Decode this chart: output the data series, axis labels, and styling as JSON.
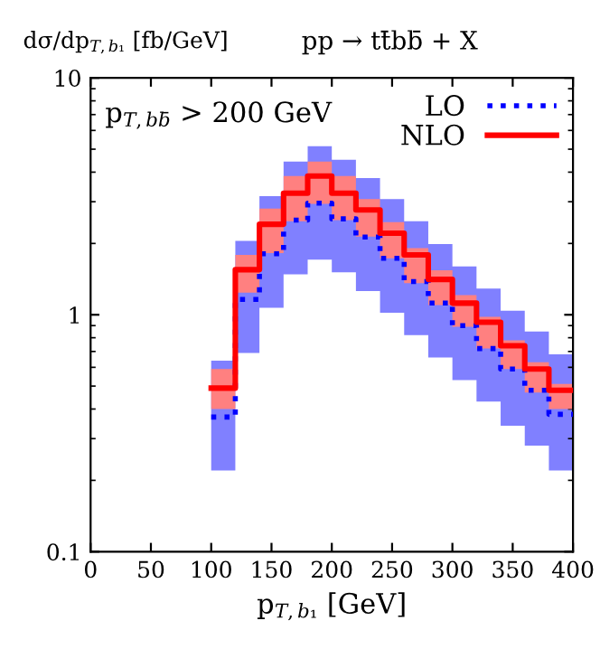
{
  "chart_data": {
    "type": "step",
    "title": "pp → tt̄bb̄ + X",
    "ylabel": "dσ/dp$_{T,b₁}$ [fb/GeV]",
    "xlabel": "p$_{T,b₁}$ [GeV]",
    "annotations": [
      "p$_{T,bb̄}$ > 200 GeV"
    ],
    "x": [
      100,
      120,
      140,
      160,
      180,
      200,
      220,
      240,
      260,
      280,
      300,
      320,
      340,
      360,
      380,
      400
    ],
    "series": [
      {
        "name": "LO",
        "color": "#0000ff",
        "line_style": "dotted",
        "values": [
          0.37,
          1.16,
          1.81,
          2.51,
          2.96,
          2.54,
          2.13,
          1.73,
          1.38,
          1.12,
          0.9,
          0.72,
          0.59,
          0.48,
          0.38,
          0.38
        ],
        "lower": [
          0.22,
          0.69,
          1.07,
          1.48,
          1.71,
          1.51,
          1.26,
          1.02,
          0.82,
          0.66,
          0.53,
          0.43,
          0.34,
          0.28,
          0.22,
          0.22
        ],
        "upper": [
          0.64,
          2.05,
          3.17,
          4.43,
          5.15,
          4.51,
          3.78,
          3.08,
          2.48,
          1.99,
          1.6,
          1.29,
          1.04,
          0.85,
          0.68,
          0.68
        ]
      },
      {
        "name": "NLO",
        "color": "#ff0000",
        "line_style": "solid",
        "values": [
          0.49,
          1.55,
          2.41,
          3.26,
          3.85,
          3.26,
          2.77,
          2.21,
          1.79,
          1.41,
          1.12,
          0.93,
          0.74,
          0.59,
          0.48,
          0.48
        ],
        "lower": [
          0.4,
          1.24,
          1.82,
          2.48,
          2.94,
          2.51,
          2.14,
          1.73,
          1.36,
          1.1,
          0.89,
          0.72,
          0.59,
          0.47,
          0.4,
          0.4
        ],
        "upper": [
          0.59,
          1.79,
          2.81,
          3.85,
          4.43,
          3.85,
          3.08,
          2.46,
          1.91,
          1.54,
          1.21,
          0.98,
          0.78,
          0.63,
          0.51,
          0.51
        ]
      }
    ],
    "xlim": [
      0,
      400
    ],
    "xticks": [
      0,
      50,
      100,
      150,
      200,
      250,
      300,
      350,
      400
    ],
    "log": "y",
    "ylim": [
      0.1,
      10
    ],
    "yticks": [
      0.1,
      1,
      10
    ],
    "legend": "top right",
    "grid": false
  }
}
